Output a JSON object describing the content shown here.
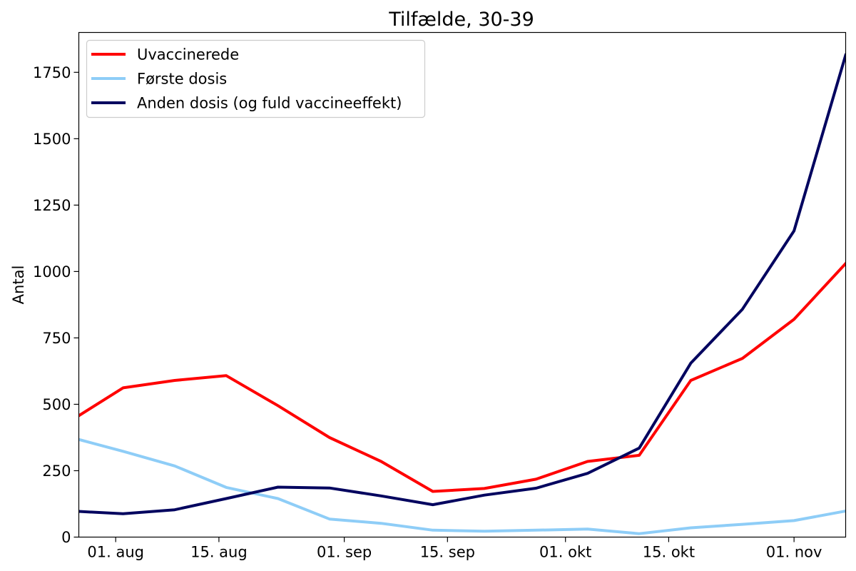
{
  "chart_data": {
    "type": "line",
    "title": "Tilfælde, 30-39",
    "xlabel": "",
    "ylabel": "Antal",
    "x": [
      "2021-07-26",
      "2021-08-02",
      "2021-08-09",
      "2021-08-16",
      "2021-08-23",
      "2021-08-30",
      "2021-09-06",
      "2021-09-13",
      "2021-09-20",
      "2021-09-27",
      "2021-10-04",
      "2021-10-11",
      "2021-10-18",
      "2021-10-25",
      "2021-11-01",
      "2021-11-08"
    ],
    "xlim": [
      "2021-07-27",
      "2021-11-08"
    ],
    "ylim": [
      0,
      1900
    ],
    "x_ticks": [
      {
        "date": "2021-08-01",
        "label": "01. aug"
      },
      {
        "date": "2021-08-15",
        "label": "15. aug"
      },
      {
        "date": "2021-09-01",
        "label": "01. sep"
      },
      {
        "date": "2021-09-15",
        "label": "15. sep"
      },
      {
        "date": "2021-10-01",
        "label": "01. okt"
      },
      {
        "date": "2021-10-15",
        "label": "15. okt"
      },
      {
        "date": "2021-11-01",
        "label": "01. nov"
      }
    ],
    "y_ticks": [
      0,
      250,
      500,
      750,
      1000,
      1250,
      1500,
      1750
    ],
    "grid": false,
    "legend_position": "top-left",
    "series": [
      {
        "name": "Uvaccinerede",
        "color": "#ff0000",
        "values": [
          440,
          562,
          590,
          608,
          495,
          375,
          285,
          172,
          183,
          218,
          285,
          308,
          590,
          673,
          820,
          1030
        ]
      },
      {
        "name": "Første dosis",
        "color": "#8ecdf7",
        "values": [
          375,
          323,
          268,
          187,
          145,
          68,
          52,
          26,
          22,
          26,
          30,
          13,
          35,
          48,
          62,
          98
        ]
      },
      {
        "name": "Anden dosis (og fuld vaccineeffekt)",
        "color": "#02045f",
        "values": [
          98,
          88,
          103,
          145,
          188,
          185,
          155,
          122,
          158,
          184,
          240,
          335,
          655,
          858,
          1153,
          1815
        ]
      }
    ]
  }
}
